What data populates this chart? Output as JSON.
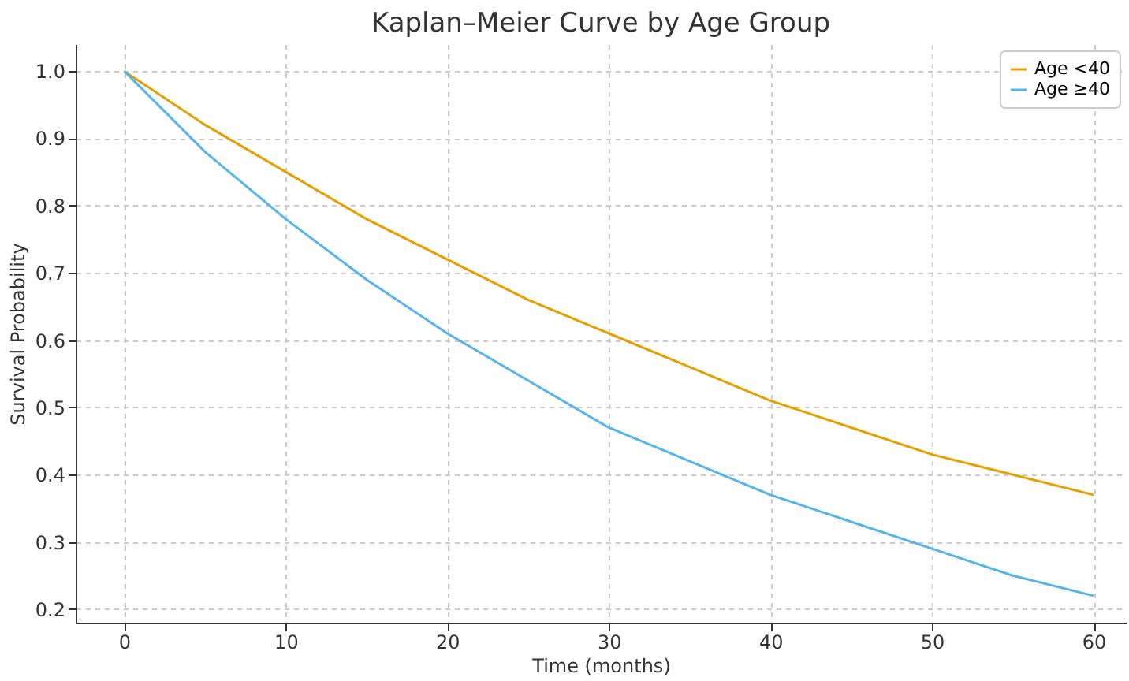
{
  "chart_data": {
    "type": "line",
    "title": "Kaplan–Meier Curve by Age Group",
    "xlabel": "Time (months)",
    "ylabel": "Survival Probability",
    "x": [
      0,
      5,
      10,
      15,
      20,
      25,
      30,
      35,
      40,
      45,
      50,
      55,
      60
    ],
    "series": [
      {
        "name": "Age <40",
        "color": "#e69f00",
        "values": [
          1.0,
          0.92,
          0.85,
          0.78,
          0.72,
          0.66,
          0.61,
          0.56,
          0.51,
          0.47,
          0.43,
          0.4,
          0.37
        ]
      },
      {
        "name": "Age ≥40",
        "color": "#56b4e9",
        "values": [
          1.0,
          0.88,
          0.78,
          0.69,
          0.61,
          0.54,
          0.47,
          0.42,
          0.37,
          0.33,
          0.29,
          0.25,
          0.22
        ]
      }
    ],
    "xlim": [
      -3,
      62
    ],
    "ylim": [
      0.18,
      1.04
    ],
    "xticks": [
      0,
      10,
      20,
      30,
      40,
      50,
      60
    ],
    "yticks": [
      0.2,
      0.3,
      0.4,
      0.5,
      0.6,
      0.7,
      0.8,
      0.9,
      {
        "value": 1.0,
        "label": "1.0"
      }
    ],
    "grid": true,
    "legend": "top right",
    "marker": "none",
    "line_style": "solid"
  }
}
